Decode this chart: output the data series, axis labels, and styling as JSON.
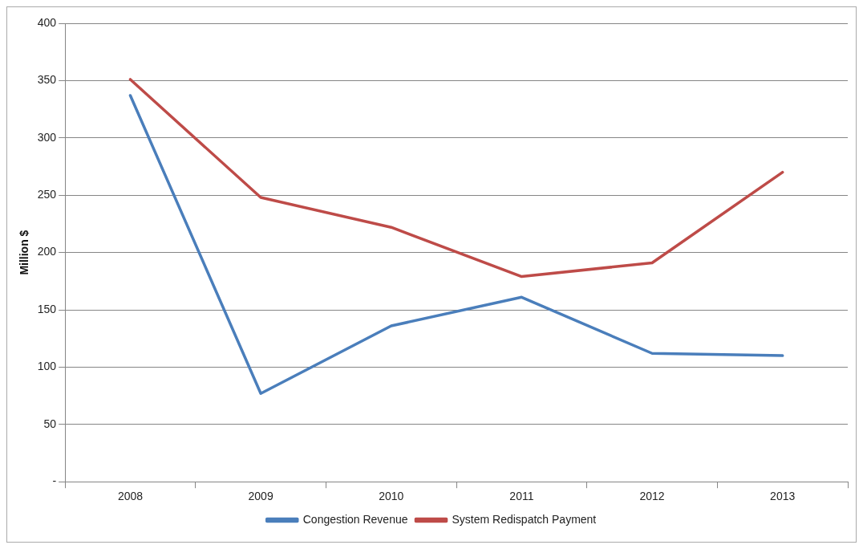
{
  "chart_data": {
    "type": "line",
    "ylabel": "Million $",
    "categories": [
      "2008",
      "2009",
      "2010",
      "2011",
      "2012",
      "2013"
    ],
    "series": [
      {
        "name": "Congestion Revenue",
        "color": "#4a7ebb",
        "values": [
          337,
          77,
          136,
          161,
          112,
          110
        ]
      },
      {
        "name": "System Redispatch Payment",
        "color": "#be4b48",
        "values": [
          351,
          248,
          222,
          179,
          191,
          270
        ]
      }
    ],
    "ylim": [
      0,
      400
    ],
    "yticks": [
      {
        "value": 0,
        "label": "-"
      },
      50,
      100,
      150,
      200,
      250,
      300,
      350,
      400
    ],
    "grid": "y",
    "legend": "bottom",
    "marker": "none",
    "line_style": "solid"
  }
}
